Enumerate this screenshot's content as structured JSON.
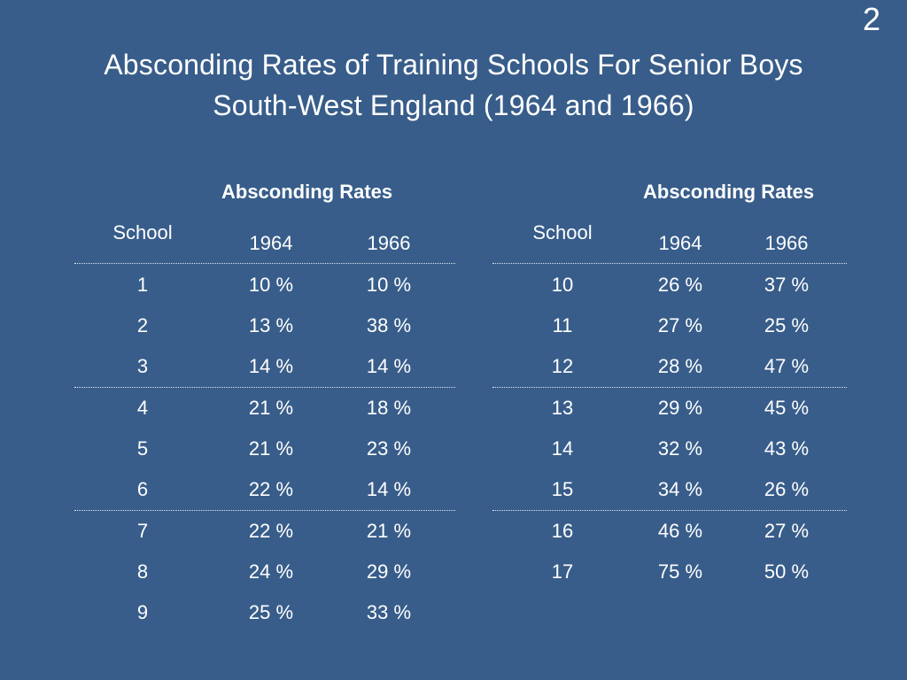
{
  "slide_number": "2",
  "title": {
    "line1": "Absconding Rates of Training Schools For Senior Boys",
    "line2": "South-West England (1964 and 1966)"
  },
  "left_table": {
    "group_header": "Absconding Rates",
    "school_header": "School",
    "year1_header": "1964",
    "year2_header": "1966",
    "groups": [
      [
        {
          "school": "1",
          "y1964": "10 %",
          "y1966": "10 %"
        },
        {
          "school": "2",
          "y1964": "13 %",
          "y1966": "38 %"
        },
        {
          "school": "3",
          "y1964": "14 %",
          "y1966": "14 %"
        }
      ],
      [
        {
          "school": "4",
          "y1964": "21 %",
          "y1966": "18 %"
        },
        {
          "school": "5",
          "y1964": "21 %",
          "y1966": "23 %"
        },
        {
          "school": "6",
          "y1964": "22 %",
          "y1966": "14 %"
        }
      ],
      [
        {
          "school": "7",
          "y1964": "22 %",
          "y1966": "21 %"
        },
        {
          "school": "8",
          "y1964": "24 %",
          "y1966": "29 %"
        },
        {
          "school": "9",
          "y1964": "25 %",
          "y1966": "33 %"
        }
      ]
    ]
  },
  "right_table": {
    "group_header": "Absconding Rates",
    "school_header": "School",
    "year1_header": "1964",
    "year2_header": "1966",
    "groups": [
      [
        {
          "school": "10",
          "y1964": "26 %",
          "y1966": "37 %"
        },
        {
          "school": "11",
          "y1964": "27 %",
          "y1966": "25 %"
        },
        {
          "school": "12",
          "y1964": "28 %",
          "y1966": "47 %"
        }
      ],
      [
        {
          "school": "13",
          "y1964": "29 %",
          "y1966": "45 %"
        },
        {
          "school": "14",
          "y1964": "32 %",
          "y1966": "43 %"
        },
        {
          "school": "15",
          "y1964": "34 %",
          "y1966": "26 %"
        }
      ],
      [
        {
          "school": "16",
          "y1964": "46 %",
          "y1966": "27 %"
        },
        {
          "school": "17",
          "y1964": "75 %",
          "y1966": "50 %"
        }
      ]
    ]
  }
}
